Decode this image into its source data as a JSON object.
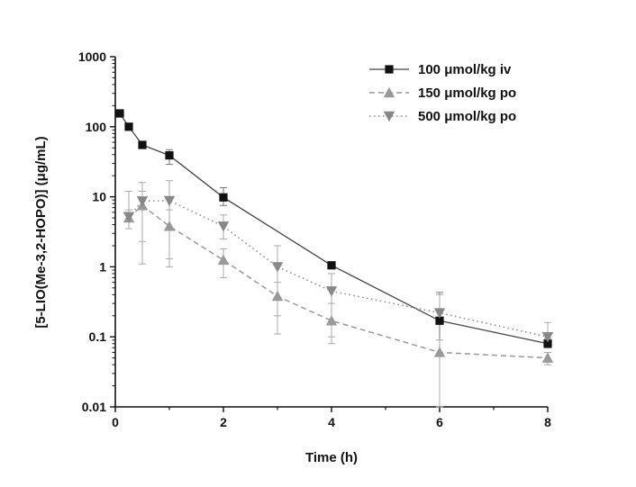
{
  "chart_data": {
    "type": "line",
    "xlabel": "Time (h)",
    "ylabel": "[5-LIO(Me-3,2-HOPO)] (μg/mL)",
    "xlim": [
      0,
      8
    ],
    "ylim": [
      0.01,
      1000
    ],
    "y_scale": "log",
    "x_ticks": [
      0,
      2,
      4,
      6,
      8
    ],
    "x_tick_labels": [
      "0",
      "2",
      "4",
      "6",
      "8"
    ],
    "y_ticks": [
      0.01,
      0.1,
      1,
      10,
      100,
      1000
    ],
    "y_tick_labels": [
      "0.01",
      "0.1",
      "1",
      "10",
      "100",
      "1000"
    ],
    "grid": false,
    "legend_position": "top-right",
    "series": [
      {
        "name": "100 μmol/kg iv",
        "color": "#444444",
        "line_style": "solid",
        "marker": "square",
        "x": [
          0.083,
          0.25,
          0.5,
          1,
          2,
          4,
          6,
          8
        ],
        "y": [
          155,
          100,
          55,
          39,
          9.8,
          1.05,
          0.17,
          0.08
        ],
        "error_upper": [
          null,
          null,
          null,
          47,
          13.5,
          1.15,
          0.43,
          0.095
        ],
        "error_lower": [
          null,
          null,
          null,
          29,
          7.5,
          0.95,
          0.01,
          0.07
        ]
      },
      {
        "name": "150 μmol/kg po",
        "color": "#999999",
        "line_style": "dashed",
        "marker": "triangle-up",
        "x": [
          0.25,
          0.5,
          1,
          2,
          3,
          4,
          6,
          8
        ],
        "y": [
          5,
          7.5,
          3.8,
          1.25,
          0.38,
          0.17,
          0.06,
          0.05
        ],
        "error_upper": [
          6.5,
          12,
          6.5,
          1.8,
          0.6,
          0.3,
          0.09,
          0.06
        ],
        "error_lower": [
          3.5,
          2.3,
          1.3,
          0.7,
          0.2,
          0.08,
          0.01,
          0.04
        ]
      },
      {
        "name": "500 μmol/kg po",
        "color": "#888888",
        "line_style": "dotted",
        "marker": "triangle-down",
        "x": [
          0.25,
          0.5,
          1,
          2,
          3,
          4,
          6,
          8
        ],
        "y": [
          5.2,
          8.7,
          8.8,
          3.8,
          1.0,
          0.45,
          0.22,
          0.1
        ],
        "error_upper": [
          12,
          16,
          17,
          5.5,
          2.0,
          0.8,
          0.4,
          0.16
        ],
        "error_lower": [
          null,
          1.1,
          1.0,
          2.5,
          0.11,
          0.1,
          null,
          null
        ]
      }
    ]
  }
}
